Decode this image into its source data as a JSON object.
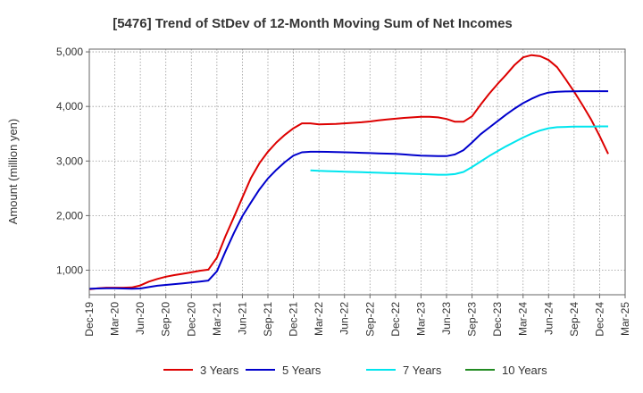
{
  "chart_data": {
    "type": "line",
    "title": "[5476]  Trend of StDev of 12-Month Moving Sum of Net Incomes",
    "ylabel": "Amount (million yen)",
    "xlabel": "",
    "ylim": [
      550,
      5050
    ],
    "y_ticks": [
      1000,
      2000,
      3000,
      4000,
      5000
    ],
    "y_tick_labels": [
      "1,000",
      "2,000",
      "3,000",
      "4,000",
      "5,000"
    ],
    "x_ticks": [
      "2019-12",
      "2020-03",
      "2020-06",
      "2020-09",
      "2020-12",
      "2021-03",
      "2021-06",
      "2021-09",
      "2021-12",
      "2022-03",
      "2022-06",
      "2022-09",
      "2022-12",
      "2023-03",
      "2023-06",
      "2023-09",
      "2023-12",
      "2024-03",
      "2024-06",
      "2024-09",
      "2024-12",
      "2025-03"
    ],
    "x_tick_labels": [
      "Dec-19",
      "Mar-20",
      "Jun-20",
      "Sep-20",
      "Dec-20",
      "Mar-21",
      "Jun-21",
      "Sep-21",
      "Dec-21",
      "Mar-22",
      "Jun-22",
      "Sep-22",
      "Dec-22",
      "Mar-23",
      "Jun-23",
      "Sep-23",
      "Dec-23",
      "Mar-24",
      "Jun-24",
      "Sep-24",
      "Dec-24",
      "Mar-25"
    ],
    "grid": true,
    "legend_position": "bottom",
    "series": [
      {
        "name": "3 Years",
        "color": "#dd0000",
        "points": [
          [
            "2019-12",
            650
          ],
          [
            "2020-01",
            670
          ],
          [
            "2020-02",
            680
          ],
          [
            "2020-03",
            680
          ],
          [
            "2020-04",
            680
          ],
          [
            "2020-05",
            685
          ],
          [
            "2020-06",
            720
          ],
          [
            "2020-07",
            790
          ],
          [
            "2020-08",
            840
          ],
          [
            "2020-09",
            880
          ],
          [
            "2020-10",
            910
          ],
          [
            "2020-11",
            935
          ],
          [
            "2020-12",
            960
          ],
          [
            "2021-01",
            990
          ],
          [
            "2021-02",
            1010
          ],
          [
            "2021-03",
            1230
          ],
          [
            "2021-04",
            1620
          ],
          [
            "2021-05",
            1970
          ],
          [
            "2021-06",
            2330
          ],
          [
            "2021-07",
            2690
          ],
          [
            "2021-08",
            2960
          ],
          [
            "2021-09",
            3170
          ],
          [
            "2021-10",
            3340
          ],
          [
            "2021-11",
            3480
          ],
          [
            "2021-12",
            3600
          ],
          [
            "2022-01",
            3690
          ],
          [
            "2022-02",
            3690
          ],
          [
            "2022-03",
            3670
          ],
          [
            "2022-04",
            3675
          ],
          [
            "2022-05",
            3680
          ],
          [
            "2022-06",
            3690
          ],
          [
            "2022-07",
            3700
          ],
          [
            "2022-08",
            3710
          ],
          [
            "2022-09",
            3725
          ],
          [
            "2022-10",
            3745
          ],
          [
            "2022-11",
            3760
          ],
          [
            "2022-12",
            3775
          ],
          [
            "2023-01",
            3790
          ],
          [
            "2023-02",
            3800
          ],
          [
            "2023-03",
            3810
          ],
          [
            "2023-04",
            3810
          ],
          [
            "2023-05",
            3800
          ],
          [
            "2023-06",
            3770
          ],
          [
            "2023-07",
            3720
          ],
          [
            "2023-08",
            3720
          ],
          [
            "2023-09",
            3820
          ],
          [
            "2023-10",
            4030
          ],
          [
            "2023-11",
            4230
          ],
          [
            "2023-12",
            4410
          ],
          [
            "2024-01",
            4580
          ],
          [
            "2024-02",
            4760
          ],
          [
            "2024-03",
            4900
          ],
          [
            "2024-04",
            4940
          ],
          [
            "2024-05",
            4920
          ],
          [
            "2024-06",
            4850
          ],
          [
            "2024-07",
            4720
          ],
          [
            "2024-08",
            4500
          ],
          [
            "2024-09",
            4270
          ],
          [
            "2024-10",
            4020
          ],
          [
            "2024-11",
            3760
          ],
          [
            "2024-12",
            3460
          ],
          [
            "2025-01",
            3130
          ]
        ]
      },
      {
        "name": "5 Years",
        "color": "#0000cc",
        "points": [
          [
            "2019-12",
            660
          ],
          [
            "2020-01",
            665
          ],
          [
            "2020-02",
            670
          ],
          [
            "2020-03",
            670
          ],
          [
            "2020-04",
            665
          ],
          [
            "2020-05",
            660
          ],
          [
            "2020-06",
            665
          ],
          [
            "2020-07",
            690
          ],
          [
            "2020-08",
            715
          ],
          [
            "2020-09",
            730
          ],
          [
            "2020-10",
            745
          ],
          [
            "2020-11",
            760
          ],
          [
            "2020-12",
            775
          ],
          [
            "2021-01",
            790
          ],
          [
            "2021-02",
            810
          ],
          [
            "2021-03",
            980
          ],
          [
            "2021-04",
            1340
          ],
          [
            "2021-05",
            1680
          ],
          [
            "2021-06",
            1990
          ],
          [
            "2021-07",
            2240
          ],
          [
            "2021-08",
            2480
          ],
          [
            "2021-09",
            2680
          ],
          [
            "2021-10",
            2840
          ],
          [
            "2021-11",
            2980
          ],
          [
            "2021-12",
            3100
          ],
          [
            "2022-01",
            3160
          ],
          [
            "2022-02",
            3170
          ],
          [
            "2022-03",
            3170
          ],
          [
            "2022-04",
            3168
          ],
          [
            "2022-05",
            3165
          ],
          [
            "2022-06",
            3160
          ],
          [
            "2022-07",
            3155
          ],
          [
            "2022-08",
            3150
          ],
          [
            "2022-09",
            3145
          ],
          [
            "2022-10",
            3140
          ],
          [
            "2022-11",
            3135
          ],
          [
            "2022-12",
            3130
          ],
          [
            "2023-01",
            3120
          ],
          [
            "2023-02",
            3110
          ],
          [
            "2023-03",
            3100
          ],
          [
            "2023-04",
            3095
          ],
          [
            "2023-05",
            3090
          ],
          [
            "2023-06",
            3090
          ],
          [
            "2023-07",
            3120
          ],
          [
            "2023-08",
            3200
          ],
          [
            "2023-09",
            3340
          ],
          [
            "2023-10",
            3490
          ],
          [
            "2023-11",
            3610
          ],
          [
            "2023-12",
            3730
          ],
          [
            "2024-01",
            3850
          ],
          [
            "2024-02",
            3960
          ],
          [
            "2024-03",
            4060
          ],
          [
            "2024-04",
            4140
          ],
          [
            "2024-05",
            4210
          ],
          [
            "2024-06",
            4255
          ],
          [
            "2024-07",
            4270
          ],
          [
            "2024-08",
            4275
          ],
          [
            "2024-09",
            4278
          ],
          [
            "2024-10",
            4280
          ],
          [
            "2024-11",
            4280
          ],
          [
            "2024-12",
            4280
          ],
          [
            "2025-01",
            4280
          ]
        ]
      },
      {
        "name": "7 Years",
        "color": "#00e5ee",
        "points": [
          [
            "2022-02",
            2830
          ],
          [
            "2022-03",
            2820
          ],
          [
            "2022-04",
            2815
          ],
          [
            "2022-05",
            2810
          ],
          [
            "2022-06",
            2805
          ],
          [
            "2022-07",
            2800
          ],
          [
            "2022-08",
            2795
          ],
          [
            "2022-09",
            2790
          ],
          [
            "2022-10",
            2785
          ],
          [
            "2022-11",
            2780
          ],
          [
            "2022-12",
            2775
          ],
          [
            "2023-01",
            2770
          ],
          [
            "2023-02",
            2765
          ],
          [
            "2023-03",
            2760
          ],
          [
            "2023-04",
            2755
          ],
          [
            "2023-05",
            2750
          ],
          [
            "2023-06",
            2750
          ],
          [
            "2023-07",
            2760
          ],
          [
            "2023-08",
            2800
          ],
          [
            "2023-09",
            2890
          ],
          [
            "2023-10",
            2990
          ],
          [
            "2023-11",
            3090
          ],
          [
            "2023-12",
            3180
          ],
          [
            "2024-01",
            3270
          ],
          [
            "2024-02",
            3350
          ],
          [
            "2024-03",
            3430
          ],
          [
            "2024-04",
            3500
          ],
          [
            "2024-05",
            3560
          ],
          [
            "2024-06",
            3600
          ],
          [
            "2024-07",
            3620
          ],
          [
            "2024-08",
            3625
          ],
          [
            "2024-09",
            3630
          ],
          [
            "2024-10",
            3630
          ],
          [
            "2024-11",
            3632
          ],
          [
            "2024-12",
            3635
          ],
          [
            "2025-01",
            3635
          ]
        ]
      },
      {
        "name": "10 Years",
        "color": "#228b22",
        "points": []
      }
    ]
  }
}
